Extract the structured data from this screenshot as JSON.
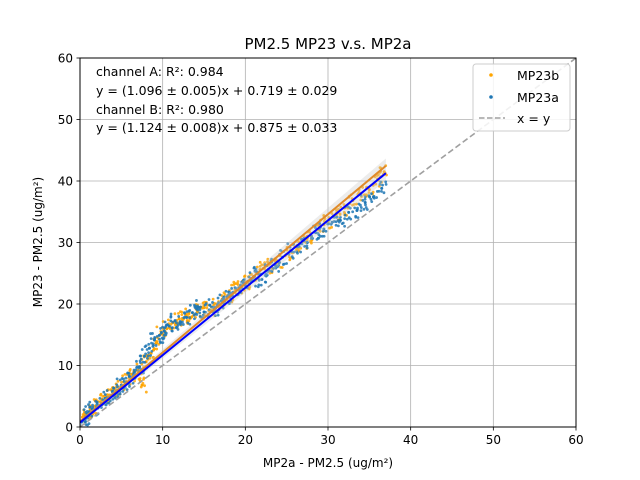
{
  "chart_data": {
    "type": "scatter",
    "title": "PM2.5 MP23 v.s. MP2a",
    "xlabel": "MP2a - PM2.5 (ug/m²)",
    "ylabel": "MP23 - PM2.5 (ug/m²)",
    "xlim": [
      0,
      60
    ],
    "ylim": [
      0,
      60
    ],
    "x_ticks": [
      "0",
      "10",
      "20",
      "30",
      "40",
      "50",
      "60"
    ],
    "y_ticks": [
      "0",
      "10",
      "20",
      "30",
      "40",
      "50",
      "60"
    ],
    "grid": true,
    "legend_position": "top-right",
    "annotations": [
      "channel A: R²: 0.984",
      "y = (1.096 ± 0.005)x + 0.719 ± 0.029",
      "channel B: R²: 0.980",
      "y = (1.124 ± 0.008)x + 0.875 ± 0.033"
    ],
    "series": [
      {
        "name": "MP23b",
        "kind": "scatter",
        "color": "#ffa500",
        "points": [
          [
            0.3,
            1.6
          ],
          [
            0.8,
            2.1
          ],
          [
            1.2,
            2.6
          ],
          [
            1.8,
            3.4
          ],
          [
            2.5,
            4.1
          ],
          [
            3.0,
            4.3
          ],
          [
            3.6,
            5.2
          ],
          [
            4.2,
            6.0
          ],
          [
            5.0,
            6.5
          ],
          [
            5.6,
            7.4
          ],
          [
            6.3,
            8.6
          ],
          [
            7.0,
            9.2
          ],
          [
            7.5,
            6.8
          ],
          [
            8.0,
            10.6
          ],
          [
            8.6,
            12.0
          ],
          [
            9.2,
            13.6
          ],
          [
            9.8,
            15.1
          ],
          [
            10.5,
            16.0
          ],
          [
            11.2,
            17.0
          ],
          [
            12.0,
            17.6
          ],
          [
            12.8,
            18.2
          ],
          [
            13.5,
            17.9
          ],
          [
            14.2,
            18.8
          ],
          [
            15.0,
            19.4
          ],
          [
            15.8,
            19.0
          ],
          [
            16.5,
            20.0
          ],
          [
            17.2,
            20.8
          ],
          [
            18.0,
            21.5
          ],
          [
            18.8,
            22.4
          ],
          [
            19.5,
            22.9
          ],
          [
            20.2,
            23.6
          ],
          [
            21.0,
            24.5
          ],
          [
            21.8,
            25.6
          ],
          [
            22.5,
            26.2
          ],
          [
            23.2,
            25.9
          ],
          [
            24.0,
            27.0
          ],
          [
            25.0,
            28.1
          ],
          [
            26.0,
            29.3
          ],
          [
            27.0,
            30.2
          ],
          [
            28.0,
            31.0
          ],
          [
            29.0,
            32.6
          ],
          [
            30.0,
            33.4
          ],
          [
            31.0,
            34.5
          ],
          [
            32.0,
            35.6
          ],
          [
            33.0,
            36.8
          ],
          [
            34.0,
            38.0
          ],
          [
            35.0,
            38.6
          ],
          [
            36.0,
            40.3
          ],
          [
            36.8,
            41.5
          ]
        ]
      },
      {
        "name": "MP23a",
        "kind": "scatter",
        "color": "#1f77b4",
        "points": [
          [
            0.2,
            0.8
          ],
          [
            0.6,
            1.4
          ],
          [
            1.0,
            2.2
          ],
          [
            1.5,
            2.9
          ],
          [
            2.0,
            3.2
          ],
          [
            2.6,
            3.8
          ],
          [
            3.2,
            4.6
          ],
          [
            3.8,
            5.1
          ],
          [
            4.4,
            5.5
          ],
          [
            5.0,
            6.8
          ],
          [
            5.5,
            7.1
          ],
          [
            6.0,
            8.2
          ],
          [
            6.6,
            8.9
          ],
          [
            7.2,
            9.8
          ],
          [
            7.8,
            11.5
          ],
          [
            8.4,
            12.8
          ],
          [
            9.0,
            14.2
          ],
          [
            9.6,
            14.9
          ],
          [
            10.2,
            15.6
          ],
          [
            10.8,
            16.4
          ],
          [
            11.5,
            17.3
          ],
          [
            12.2,
            17.0
          ],
          [
            12.9,
            17.8
          ],
          [
            13.6,
            18.6
          ],
          [
            14.3,
            19.5
          ],
          [
            15.0,
            18.7
          ],
          [
            15.7,
            19.8
          ],
          [
            16.4,
            19.3
          ],
          [
            17.1,
            20.5
          ],
          [
            17.8,
            21.2
          ],
          [
            18.5,
            21.9
          ],
          [
            19.2,
            22.6
          ],
          [
            20.0,
            23.0
          ],
          [
            20.7,
            24.1
          ],
          [
            21.4,
            25.2
          ],
          [
            22.0,
            24.0
          ],
          [
            22.8,
            25.6
          ],
          [
            23.6,
            26.4
          ],
          [
            24.5,
            27.6
          ],
          [
            25.5,
            28.6
          ],
          [
            26.5,
            29.4
          ],
          [
            27.5,
            30.0
          ],
          [
            28.5,
            31.6
          ],
          [
            29.5,
            32.2
          ],
          [
            30.5,
            33.3
          ],
          [
            31.5,
            33.6
          ],
          [
            32.5,
            34.9
          ],
          [
            33.5,
            35.2
          ],
          [
            34.5,
            36.5
          ],
          [
            35.5,
            37.4
          ],
          [
            36.5,
            38.8
          ]
        ]
      },
      {
        "name": "",
        "kind": "fit-line",
        "color": "#e08a2a",
        "x": [
          0,
          37
        ],
        "y": [
          0.875,
          42.46
        ]
      },
      {
        "name": "",
        "kind": "fit-line",
        "color": "#0000ff",
        "x": [
          0,
          37
        ],
        "y": [
          0.719,
          41.27
        ]
      },
      {
        "name": "x = y",
        "kind": "reference-line",
        "color": "#a0a0a0",
        "x": [
          0,
          60
        ],
        "y": [
          0,
          60
        ]
      }
    ]
  }
}
